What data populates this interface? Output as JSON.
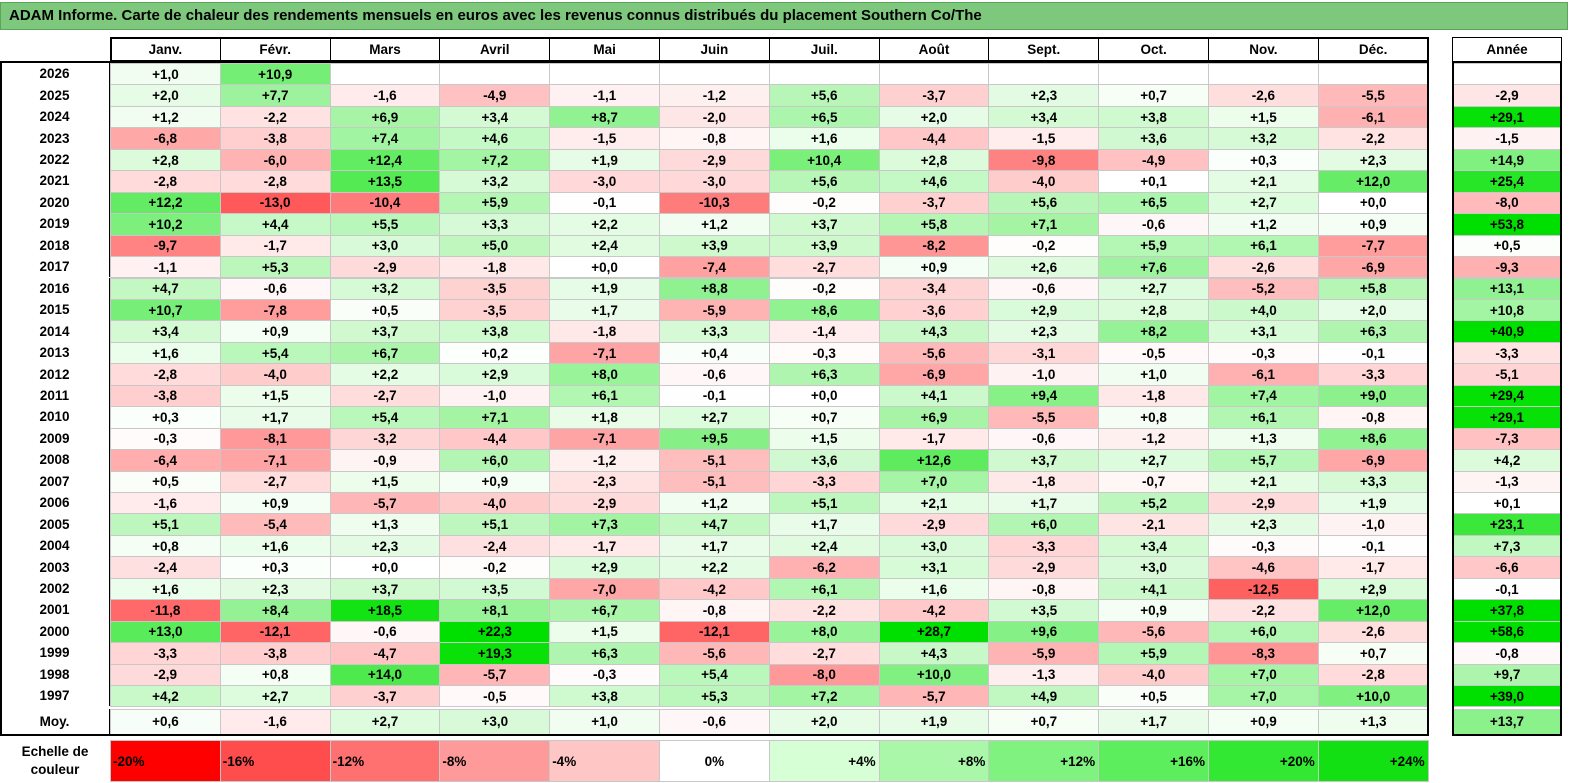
{
  "title": "ADAM Informe. Carte de chaleur des rendements mensuels en euros avec les revenus connus distribués du placement Southern Co/The",
  "chart_data": {
    "type": "heatmap",
    "months": [
      "Janv.",
      "Févr.",
      "Mars",
      "Avril",
      "Mai",
      "Juin",
      "Juil.",
      "Août",
      "Sept.",
      "Oct.",
      "Nov.",
      "Déc."
    ],
    "year_header": "Année",
    "rows": [
      {
        "year": "2026",
        "months": [
          "+1,0",
          "+10,9",
          "",
          "",
          "",
          "",
          "",
          "",
          "",
          "",
          "",
          ""
        ],
        "annual": ""
      },
      {
        "year": "2025",
        "months": [
          "+2,0",
          "+7,7",
          "-1,6",
          "-4,9",
          "-1,1",
          "-1,2",
          "+5,6",
          "-3,7",
          "+2,3",
          "+0,7",
          "-2,6",
          "-5,5"
        ],
        "annual": "-2,9"
      },
      {
        "year": "2024",
        "months": [
          "+1,2",
          "-2,2",
          "+6,9",
          "+3,4",
          "+8,7",
          "-2,0",
          "+6,5",
          "+2,0",
          "+3,4",
          "+3,8",
          "+1,5",
          "-6,1"
        ],
        "annual": "+29,1"
      },
      {
        "year": "2023",
        "months": [
          "-6,8",
          "-3,8",
          "+7,4",
          "+4,6",
          "-1,5",
          "-0,8",
          "+1,6",
          "-4,4",
          "-1,5",
          "+3,6",
          "+3,2",
          "-2,2"
        ],
        "annual": "-1,5"
      },
      {
        "year": "2022",
        "months": [
          "+2,8",
          "-6,0",
          "+12,4",
          "+7,2",
          "+1,9",
          "-2,9",
          "+10,4",
          "+2,8",
          "-9,8",
          "-4,9",
          "+0,3",
          "+2,3"
        ],
        "annual": "+14,9"
      },
      {
        "year": "2021",
        "months": [
          "-2,8",
          "-2,8",
          "+13,5",
          "+3,2",
          "-3,0",
          "-3,0",
          "+5,6",
          "+4,6",
          "-4,0",
          "+0,1",
          "+2,1",
          "+12,0"
        ],
        "annual": "+25,4"
      },
      {
        "year": "2020",
        "months": [
          "+12,2",
          "-13,0",
          "-10,4",
          "+5,9",
          "-0,1",
          "-10,3",
          "-0,2",
          "-3,7",
          "+5,6",
          "+6,5",
          "+2,7",
          "+0,0"
        ],
        "annual": "-8,0"
      },
      {
        "year": "2019",
        "months": [
          "+10,2",
          "+4,4",
          "+5,5",
          "+3,3",
          "+2,2",
          "+1,2",
          "+3,7",
          "+5,8",
          "+7,1",
          "-0,6",
          "+1,2",
          "+0,9"
        ],
        "annual": "+53,8"
      },
      {
        "year": "2018",
        "months": [
          "-9,7",
          "-1,7",
          "+3,0",
          "+5,0",
          "+2,4",
          "+3,9",
          "+3,9",
          "-8,2",
          "-0,2",
          "+5,9",
          "+6,1",
          "-7,7"
        ],
        "annual": "+0,5"
      },
      {
        "year": "2017",
        "months": [
          "-1,1",
          "+5,3",
          "-2,9",
          "-1,8",
          "+0,0",
          "-7,4",
          "-2,7",
          "+0,9",
          "+2,6",
          "+7,6",
          "-2,6",
          "-6,9"
        ],
        "annual": "-9,3"
      },
      {
        "year": "2016",
        "months": [
          "+4,7",
          "-0,6",
          "+3,2",
          "-3,5",
          "+1,9",
          "+8,8",
          "-0,2",
          "-3,4",
          "-0,6",
          "+2,7",
          "-5,2",
          "+5,8"
        ],
        "annual": "+13,1"
      },
      {
        "year": "2015",
        "months": [
          "+10,7",
          "-7,8",
          "+0,5",
          "-3,5",
          "+1,7",
          "-5,9",
          "+8,6",
          "-3,6",
          "+2,9",
          "+2,8",
          "+4,0",
          "+2,0"
        ],
        "annual": "+10,8"
      },
      {
        "year": "2014",
        "months": [
          "+3,4",
          "+0,9",
          "+3,7",
          "+3,8",
          "-1,8",
          "+3,3",
          "-1,4",
          "+4,3",
          "+2,3",
          "+8,2",
          "+3,1",
          "+6,3"
        ],
        "annual": "+40,9"
      },
      {
        "year": "2013",
        "months": [
          "+1,6",
          "+5,4",
          "+6,7",
          "+0,2",
          "-7,1",
          "+0,4",
          "-0,3",
          "-5,6",
          "-3,1",
          "-0,5",
          "-0,3",
          "-0,1"
        ],
        "annual": "-3,3"
      },
      {
        "year": "2012",
        "months": [
          "-2,8",
          "-4,0",
          "+2,2",
          "+2,9",
          "+8,0",
          "-0,6",
          "+6,3",
          "-6,9",
          "-1,0",
          "+1,0",
          "-6,1",
          "-3,3"
        ],
        "annual": "-5,1"
      },
      {
        "year": "2011",
        "months": [
          "-3,8",
          "+1,5",
          "-2,7",
          "-1,0",
          "+6,1",
          "-0,1",
          "+0,0",
          "+4,1",
          "+9,4",
          "-1,8",
          "+7,4",
          "+9,0"
        ],
        "annual": "+29,4"
      },
      {
        "year": "2010",
        "months": [
          "+0,3",
          "+1,7",
          "+5,4",
          "+7,1",
          "+1,8",
          "+2,7",
          "+0,7",
          "+6,9",
          "-5,5",
          "+0,8",
          "+6,1",
          "-0,8"
        ],
        "annual": "+29,1"
      },
      {
        "year": "2009",
        "months": [
          "-0,3",
          "-8,1",
          "-3,2",
          "-4,4",
          "-7,1",
          "+9,5",
          "+1,5",
          "-1,7",
          "-0,6",
          "-1,2",
          "+1,3",
          "+8,6"
        ],
        "annual": "-7,3"
      },
      {
        "year": "2008",
        "months": [
          "-6,4",
          "-7,1",
          "-0,9",
          "+6,0",
          "-1,2",
          "-5,1",
          "+3,6",
          "+12,6",
          "+3,7",
          "+2,7",
          "+5,7",
          "-6,9"
        ],
        "annual": "+4,2"
      },
      {
        "year": "2007",
        "months": [
          "+0,5",
          "-2,7",
          "+1,5",
          "+0,9",
          "-2,3",
          "-5,1",
          "-3,3",
          "+7,0",
          "-1,8",
          "-0,7",
          "+2,1",
          "+3,3"
        ],
        "annual": "-1,3"
      },
      {
        "year": "2006",
        "months": [
          "-1,6",
          "+0,9",
          "-5,7",
          "-4,0",
          "-2,9",
          "+1,2",
          "+5,1",
          "+2,1",
          "+1,7",
          "+5,2",
          "-2,9",
          "+1,9"
        ],
        "annual": "+0,1"
      },
      {
        "year": "2005",
        "months": [
          "+5,1",
          "-5,4",
          "+1,3",
          "+5,1",
          "+7,3",
          "+4,7",
          "+1,7",
          "-2,9",
          "+6,0",
          "-2,1",
          "+2,3",
          "-1,0"
        ],
        "annual": "+23,1"
      },
      {
        "year": "2004",
        "months": [
          "+0,8",
          "+1,6",
          "+2,3",
          "-2,4",
          "-1,7",
          "+1,7",
          "+2,4",
          "+3,0",
          "-3,3",
          "+3,4",
          "-0,3",
          "-0,1"
        ],
        "annual": "+7,3"
      },
      {
        "year": "2003",
        "months": [
          "-2,4",
          "+0,3",
          "+0,0",
          "-0,2",
          "+2,9",
          "+2,2",
          "-6,2",
          "+3,1",
          "-2,9",
          "+3,0",
          "-4,6",
          "-1,7"
        ],
        "annual": "-6,6"
      },
      {
        "year": "2002",
        "months": [
          "+1,6",
          "+2,3",
          "+3,7",
          "+3,5",
          "-7,0",
          "-4,2",
          "+6,1",
          "+1,6",
          "-0,8",
          "+4,1",
          "-12,5",
          "+2,9"
        ],
        "annual": "-0,1"
      },
      {
        "year": "2001",
        "months": [
          "-11,8",
          "+8,4",
          "+18,5",
          "+8,1",
          "+6,7",
          "-0,8",
          "-2,2",
          "-4,2",
          "+3,5",
          "+0,9",
          "-2,2",
          "+12,0"
        ],
        "annual": "+37,8"
      },
      {
        "year": "2000",
        "months": [
          "+13,0",
          "-12,1",
          "-0,6",
          "+22,3",
          "+1,5",
          "-12,1",
          "+8,0",
          "+28,7",
          "+9,6",
          "-5,6",
          "+6,0",
          "-2,6"
        ],
        "annual": "+58,6"
      },
      {
        "year": "1999",
        "months": [
          "-3,3",
          "-3,8",
          "-4,7",
          "+19,3",
          "+6,3",
          "-5,6",
          "-2,7",
          "+4,3",
          "-5,9",
          "+5,9",
          "-8,3",
          "+0,7"
        ],
        "annual": "-0,8"
      },
      {
        "year": "1998",
        "months": [
          "-2,9",
          "+0,8",
          "+14,0",
          "-5,7",
          "-0,3",
          "+5,4",
          "-8,0",
          "+10,0",
          "-1,3",
          "-4,0",
          "+7,0",
          "-2,8"
        ],
        "annual": "+9,7"
      },
      {
        "year": "1997",
        "months": [
          "+4,2",
          "+2,7",
          "-3,7",
          "-0,5",
          "+3,8",
          "+5,3",
          "+7,2",
          "-5,7",
          "+4,9",
          "+0,5",
          "+7,0",
          "+10,0"
        ],
        "annual": "+39,0"
      }
    ],
    "average": {
      "label": "Moy.",
      "months": [
        "+0,6",
        "-1,6",
        "+2,7",
        "+3,0",
        "+1,0",
        "-0,6",
        "+2,0",
        "+1,9",
        "+0,7",
        "+1,7",
        "+0,9",
        "+1,3"
      ],
      "annual": "+13,7"
    },
    "scale": {
      "label": "Echelle de couleur",
      "stops": [
        "-20%",
        "-16%",
        "-12%",
        "-8%",
        "-4%",
        "0%",
        "+4%",
        "+8%",
        "+12%",
        "+16%",
        "+20%",
        "+24%"
      ],
      "colors": [
        "#ff0000",
        "#ff4d4d",
        "#ff7070",
        "#ff9a9a",
        "#ffc6c6",
        "#ffffff",
        "#d6ffd6",
        "#aaf7aa",
        "#80f280",
        "#5cee5c",
        "#33e833",
        "#12e012"
      ]
    },
    "colors": {
      "title_bg": "#7ec87e",
      "negative": "#ff0000",
      "positive": "#00e000",
      "neutral": "#ffffff"
    }
  }
}
